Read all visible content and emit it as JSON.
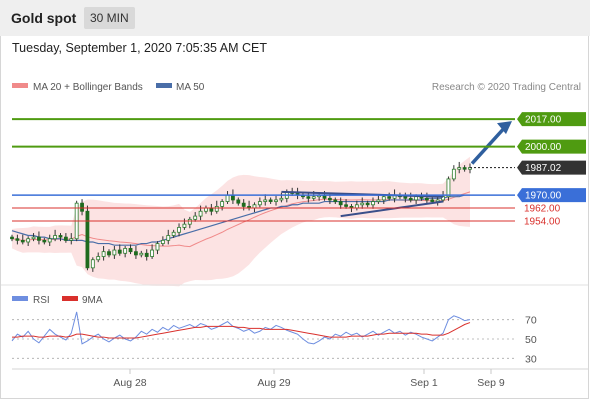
{
  "header": {
    "symbol": "Gold spot",
    "timeframe": "30 MIN",
    "timestamp": "Tuesday, September 1, 2020 7:05:35 AM CET"
  },
  "legend": {
    "bollinger": "MA 20 + Bollinger Bands",
    "ma50": "MA 50",
    "credit": "Research © 2020 Trading Central"
  },
  "rsi_legend": {
    "rsi": "RSI",
    "ma": "9MA"
  },
  "colors": {
    "green_level": "#4f9b11",
    "blue_level": "#3a6fd8",
    "red_level": "#d9302c",
    "current": "#333333",
    "bollinger": "#f08a8a",
    "ma50": "#4a6ea8",
    "arrow": "#2f5f9e",
    "rsi": "#6e8ee0",
    "rsi_ma": "#d9302c"
  },
  "chart_data": [
    {
      "type": "candlestick",
      "title": "Gold spot",
      "timeframe": "30 MIN",
      "x_ticks": [
        "Aug 28",
        "Aug 29",
        "Sep 1",
        "Sep 9"
      ],
      "ylim": [
        1915,
        2035
      ],
      "levels": [
        {
          "label": "2017.00",
          "value": 2017.0,
          "kind": "resistance"
        },
        {
          "label": "2000.00",
          "value": 2000.0,
          "kind": "resistance"
        },
        {
          "label": "1987.02",
          "value": 1987.02,
          "kind": "current"
        },
        {
          "label": "1970.00",
          "value": 1970.0,
          "kind": "pivot"
        },
        {
          "label": "1962.00",
          "value": 1962.0,
          "kind": "support"
        },
        {
          "label": "1954.00",
          "value": 1954.0,
          "kind": "support"
        }
      ],
      "close_path": [
        1943,
        1942,
        1941,
        1943,
        1944,
        1942,
        1941,
        1943,
        1945,
        1944,
        1942,
        1943,
        1965,
        1960,
        1925,
        1930,
        1932,
        1935,
        1933,
        1936,
        1934,
        1937,
        1935,
        1933,
        1934,
        1932,
        1936,
        1940,
        1942,
        1945,
        1947,
        1950,
        1952,
        1955,
        1957,
        1960,
        1962,
        1960,
        1963,
        1966,
        1970,
        1967,
        1965,
        1963,
        1962,
        1964,
        1966,
        1967,
        1966,
        1967,
        1968,
        1972,
        1971,
        1970,
        1969,
        1968,
        1969,
        1970,
        1968,
        1967,
        1966,
        1964,
        1963,
        1962,
        1964,
        1965,
        1964,
        1966,
        1967,
        1969,
        1968,
        1970,
        1969,
        1968,
        1967,
        1969,
        1968,
        1967,
        1966,
        1967,
        1969,
        1980,
        1986,
        1987,
        1986,
        1987
      ],
      "ma50_path": [
        1948,
        1947,
        1946,
        1945,
        1945,
        1944,
        1944,
        1943,
        1943,
        1943,
        1942,
        1942,
        1942,
        1942,
        1941,
        1941,
        1940,
        1940,
        1940,
        1939,
        1939,
        1939,
        1939,
        1939,
        1940,
        1940,
        1941,
        1941,
        1942,
        1943,
        1944,
        1945,
        1946,
        1947,
        1948,
        1949,
        1950,
        1951,
        1952,
        1953,
        1954,
        1955,
        1956,
        1957,
        1958,
        1959,
        1960,
        1961,
        1962,
        1962,
        1963,
        1963,
        1964,
        1964,
        1965,
        1965,
        1965,
        1965,
        1966,
        1966,
        1966,
        1966,
        1966,
        1966,
        1966,
        1966,
        1966,
        1966,
        1966,
        1966,
        1967,
        1967,
        1967,
        1967,
        1967,
        1967,
        1967,
        1968,
        1968,
        1968,
        1968,
        1969,
        1969,
        1969,
        1970,
        1970
      ],
      "series": [
        {
          "name": "MA 20 + Bollinger Bands"
        },
        {
          "name": "MA 50"
        }
      ]
    },
    {
      "type": "line",
      "indicator": "RSI",
      "y_ticks": [
        70,
        50,
        30
      ],
      "ylim": [
        20,
        80
      ],
      "series": [
        {
          "name": "RSI",
          "values": [
            48,
            55,
            52,
            58,
            50,
            46,
            53,
            60,
            55,
            52,
            49,
            56,
            78,
            45,
            48,
            52,
            55,
            50,
            47,
            51,
            54,
            50,
            48,
            52,
            58,
            55,
            60,
            57,
            62,
            59,
            64,
            61,
            63,
            65,
            62,
            66,
            64,
            60,
            62,
            65,
            68,
            63,
            61,
            58,
            60,
            56,
            58,
            62,
            60,
            64,
            62,
            59,
            57,
            55,
            50,
            46,
            45,
            48,
            52,
            50,
            55,
            53,
            57,
            54,
            56,
            52,
            55,
            58,
            54,
            57,
            60,
            56,
            58,
            54,
            57,
            55,
            52,
            50,
            48,
            52,
            56,
            70,
            74,
            72,
            69,
            70
          ]
        },
        {
          "name": "9MA",
          "values": [
            52,
            52,
            53,
            53,
            53,
            52,
            52,
            53,
            53,
            53,
            52,
            53,
            55,
            55,
            54,
            53,
            52,
            52,
            51,
            51,
            51,
            51,
            51,
            51,
            52,
            53,
            54,
            55,
            56,
            57,
            58,
            59,
            60,
            61,
            62,
            62,
            63,
            63,
            63,
            63,
            63,
            63,
            62,
            62,
            61,
            61,
            61,
            60,
            60,
            60,
            60,
            60,
            59,
            58,
            57,
            56,
            55,
            54,
            53,
            52,
            52,
            52,
            52,
            53,
            53,
            53,
            53,
            54,
            55,
            55,
            56,
            56,
            56,
            56,
            56,
            56,
            55,
            55,
            54,
            54,
            54,
            56,
            59,
            62,
            65,
            67
          ]
        }
      ]
    }
  ]
}
